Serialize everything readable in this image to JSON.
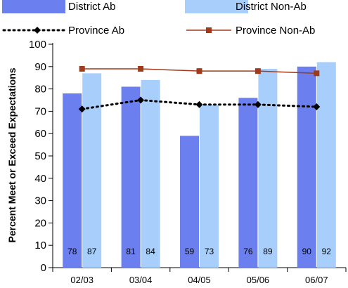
{
  "chart_data": {
    "type": "bar",
    "categories": [
      "02/03",
      "03/04",
      "04/05",
      "05/06",
      "06/07"
    ],
    "series": [
      {
        "name": "District Ab",
        "kind": "bar",
        "values": [
          78,
          81,
          59,
          76,
          90
        ],
        "color": "#6b80ee"
      },
      {
        "name": "District Non-Ab",
        "kind": "bar",
        "values": [
          87,
          84,
          73,
          89,
          92
        ],
        "color": "#a8cffc"
      },
      {
        "name": "Province Ab",
        "kind": "line",
        "style": "dotted",
        "marker": "diamond",
        "values": [
          71,
          75,
          73,
          73,
          72
        ],
        "color": "#000000"
      },
      {
        "name": "Province Non-Ab",
        "kind": "line",
        "style": "solid",
        "marker": "square",
        "values": [
          89,
          89,
          88,
          88,
          87
        ],
        "color": "#a03a1a"
      }
    ],
    "ylabel": "Percent Meet or Exceed Expectations",
    "ylim": [
      0,
      100
    ],
    "yticks": [
      0,
      10,
      20,
      30,
      40,
      50,
      60,
      70,
      80,
      90,
      100
    ],
    "grid": false,
    "legend_position": "top"
  }
}
